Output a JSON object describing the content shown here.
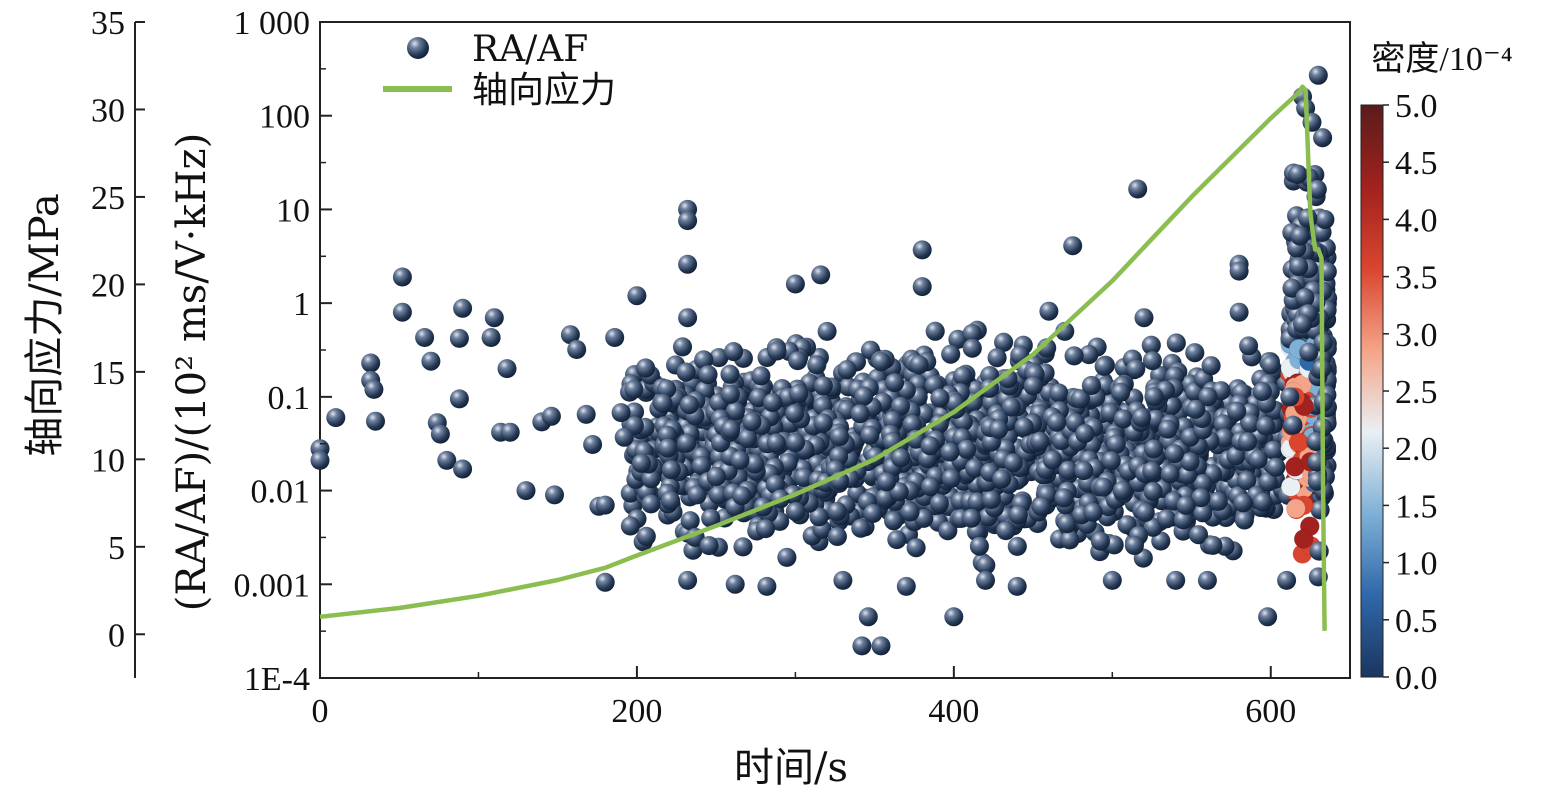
{
  "chart_data": {
    "type": "scatter",
    "x": {
      "label": "时间/s",
      "ticks": [
        "0",
        "200",
        "400",
        "600"
      ],
      "tick_values": [
        0,
        200,
        400,
        600
      ],
      "range": [
        0,
        650
      ]
    },
    "y_left": {
      "label": "轴向应力/MPa",
      "ticks": [
        "0",
        "5",
        "10",
        "15",
        "20",
        "25",
        "30",
        "35"
      ],
      "tick_values": [
        0,
        5,
        10,
        15,
        20,
        25,
        30,
        35
      ],
      "range": [
        -2.5,
        35
      ]
    },
    "y_right": {
      "label": "(RA/AF)/(10² ms/V·kHz)",
      "scale": "log",
      "ticks": [
        "1E-4",
        "0.001",
        "0.01",
        "0.1",
        "1",
        "10",
        "100",
        "1 000"
      ],
      "tick_values": [
        0.0001,
        0.001,
        0.01,
        0.1,
        1,
        10,
        100,
        1000
      ],
      "range": [
        0.0001,
        1000
      ]
    },
    "colorbar": {
      "title": "密度/10⁻⁴",
      "ticks": [
        "0.0",
        "0.5",
        "1.0",
        "1.5",
        "2.0",
        "2.5",
        "3.0",
        "3.5",
        "4.0",
        "4.5",
        "5.0"
      ],
      "tick_values": [
        0,
        0.5,
        1.0,
        1.5,
        2.0,
        2.5,
        3.0,
        3.5,
        4.0,
        4.5,
        5.0
      ],
      "range": [
        0,
        5.0
      ],
      "colors": [
        "#1b3560",
        "#2f68a8",
        "#7fb0d6",
        "#eaeff3",
        "#f4a488",
        "#d9452f",
        "#a1221e",
        "#5a1c1c"
      ]
    },
    "series": [
      {
        "name": "RA/AF",
        "kind": "scatter",
        "color": "#2a3d5f",
        "points": [
          [
            0,
            0.028
          ],
          [
            0,
            0.021
          ],
          [
            10,
            0.06
          ],
          [
            32,
            0.23
          ],
          [
            32,
            0.15
          ],
          [
            34,
            0.12
          ],
          [
            35,
            0.055
          ],
          [
            52,
            1.9
          ],
          [
            52,
            0.8
          ],
          [
            66,
            0.43
          ],
          [
            70,
            0.24
          ],
          [
            74,
            0.053
          ],
          [
            76,
            0.04
          ],
          [
            80,
            0.021
          ],
          [
            88,
            0.42
          ],
          [
            88,
            0.095
          ],
          [
            90,
            0.017
          ],
          [
            90,
            0.88
          ],
          [
            108,
            0.43
          ],
          [
            110,
            0.7
          ],
          [
            114,
            0.042
          ],
          [
            118,
            0.2
          ],
          [
            120,
            0.042
          ],
          [
            130,
            0.01
          ],
          [
            140,
            0.054
          ],
          [
            146,
            0.062
          ],
          [
            148,
            0.009
          ],
          [
            158,
            0.46
          ],
          [
            162,
            0.32
          ],
          [
            168,
            0.065
          ],
          [
            172,
            0.031
          ],
          [
            176,
            0.0068
          ],
          [
            180,
            0.007
          ],
          [
            180,
            0.00105
          ],
          [
            186,
            0.43
          ],
          [
            190,
            0.068
          ],
          [
            192,
            0.037
          ],
          [
            198,
            0.12
          ],
          [
            200,
            1.2
          ],
          [
            232,
            10
          ],
          [
            232,
            7.6
          ],
          [
            232,
            2.6
          ],
          [
            232,
            0.0011
          ],
          [
            232,
            0.7
          ],
          [
            262,
            0.001
          ],
          [
            282,
            0.00095
          ],
          [
            300,
            1.6
          ],
          [
            316,
            2.0
          ],
          [
            320,
            0.5
          ],
          [
            330,
            0.0011
          ],
          [
            342,
            0.00022
          ],
          [
            346,
            0.00045
          ],
          [
            354,
            0.00022
          ],
          [
            364,
            0.003
          ],
          [
            370,
            0.00095
          ],
          [
            380,
            3.7
          ],
          [
            380,
            1.5
          ],
          [
            400,
            0.00045
          ],
          [
            420,
            0.0011
          ],
          [
            440,
            0.00095
          ],
          [
            460,
            0.82
          ],
          [
            470,
            0.5
          ],
          [
            475,
            4.1
          ],
          [
            500,
            0.0011
          ],
          [
            516,
            16.5
          ],
          [
            520,
            0.7
          ],
          [
            540,
            0.0011
          ],
          [
            560,
            0.0011
          ],
          [
            580,
            2.6
          ],
          [
            580,
            2.2
          ],
          [
            580,
            0.8
          ],
          [
            586,
            0.35
          ],
          [
            598,
            0.00045
          ],
          [
            600,
            0.22
          ],
          [
            610,
            0.0011
          ],
          [
            620,
            160
          ],
          [
            622,
            120
          ],
          [
            626,
            85
          ],
          [
            630,
            270
          ],
          [
            612,
            0.1
          ],
          [
            614,
            0.05
          ],
          [
            620,
            0.6
          ],
          [
            624,
            0.3
          ],
          [
            630,
            0.0012
          ]
        ],
        "cloud": [
          {
            "x_range": [
              195,
              612
            ],
            "log_y_range": [
              -3.0,
              -0.1
            ],
            "count": 1250
          },
          {
            "x_range": [
              250,
              560
            ],
            "log_y_range": [
              -2.75,
              -0.3
            ],
            "count": 400
          },
          {
            "x_range": [
              612,
              636
            ],
            "log_y_range": [
              -3.2,
              2.0
            ],
            "count": 380
          }
        ]
      },
      {
        "name": "轴向应力",
        "kind": "line",
        "color": "#8bbd50",
        "points": [
          [
            0,
            1.0
          ],
          [
            50,
            1.5
          ],
          [
            100,
            2.2
          ],
          [
            150,
            3.1
          ],
          [
            180,
            3.8
          ],
          [
            200,
            4.5
          ],
          [
            250,
            6.2
          ],
          [
            300,
            8.0
          ],
          [
            350,
            10.0
          ],
          [
            400,
            12.7
          ],
          [
            450,
            16.0
          ],
          [
            500,
            20.2
          ],
          [
            550,
            25.0
          ],
          [
            600,
            29.5
          ],
          [
            618,
            31.0
          ],
          [
            620,
            31.3
          ],
          [
            622,
            31.1
          ],
          [
            625,
            24.0
          ],
          [
            628,
            22.0
          ],
          [
            630,
            22.0
          ],
          [
            632,
            21.5
          ],
          [
            633,
            8.0
          ],
          [
            634,
            0.2
          ]
        ]
      }
    ],
    "legend": {
      "position": "top-left"
    }
  }
}
